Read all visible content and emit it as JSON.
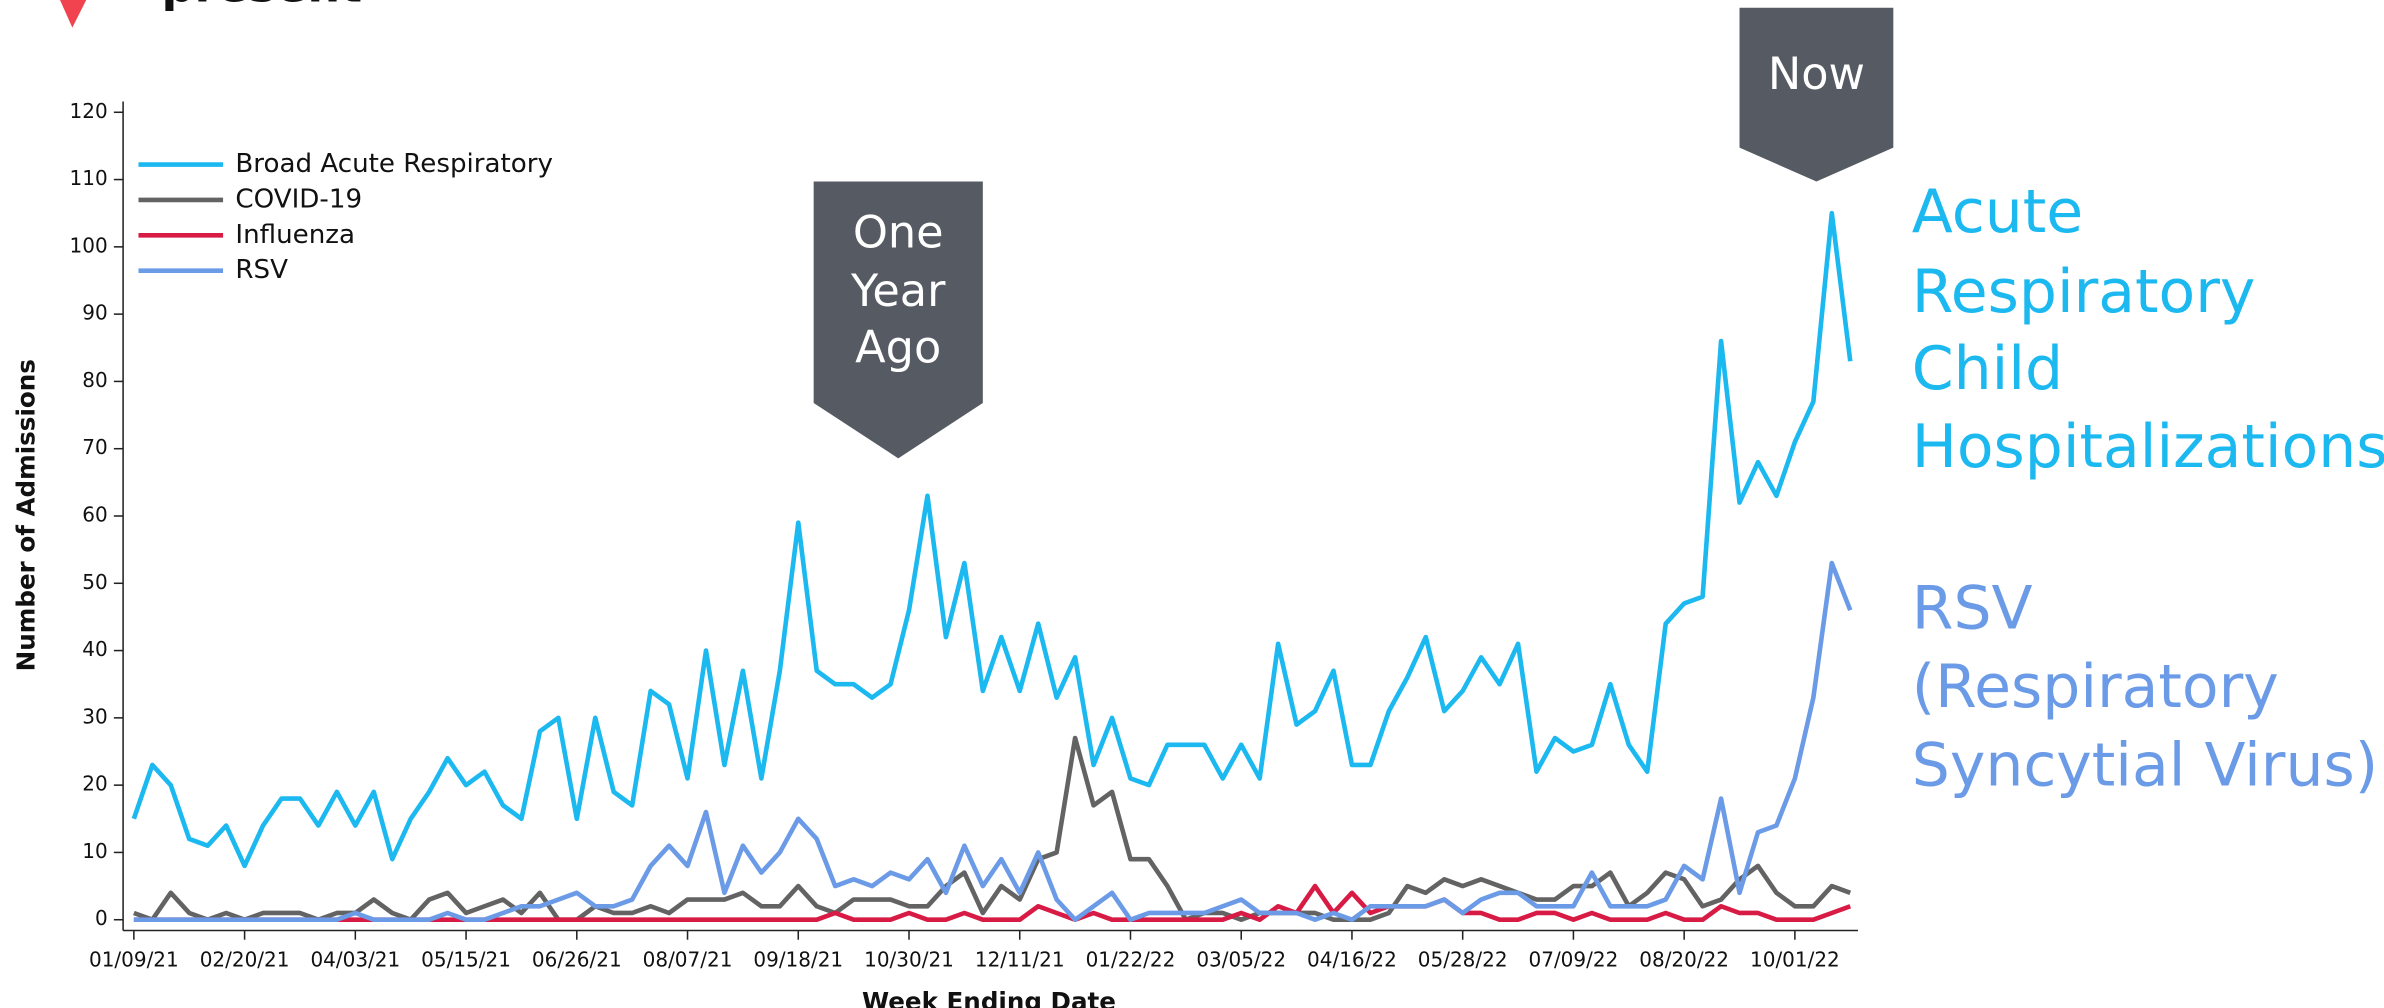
{
  "chart_data": {
    "type": "line",
    "heading_fragment": "present",
    "x_label": "Week Ending Date",
    "y_label": "Number of Admissions",
    "categories": [
      "01/09/21",
      null,
      null,
      null,
      null,
      null,
      "02/20/21",
      null,
      null,
      null,
      null,
      null,
      "04/03/21",
      null,
      null,
      null,
      null,
      null,
      "05/15/21",
      null,
      null,
      null,
      null,
      null,
      "06/26/21",
      null,
      null,
      null,
      null,
      null,
      "08/07/21",
      null,
      null,
      null,
      null,
      null,
      "09/18/21",
      null,
      null,
      null,
      null,
      null,
      "10/30/21",
      null,
      null,
      null,
      null,
      null,
      "12/11/21",
      null,
      null,
      null,
      null,
      null,
      "01/22/22",
      null,
      null,
      null,
      null,
      null,
      "03/05/22",
      null,
      null,
      null,
      null,
      null,
      "04/16/22",
      null,
      null,
      null,
      null,
      null,
      "05/28/22",
      null,
      null,
      null,
      null,
      null,
      "07/09/22",
      null,
      null,
      null,
      null,
      null,
      "08/20/22",
      null,
      null,
      null,
      null,
      null,
      "10/01/22",
      null,
      null,
      null
    ],
    "ylim": [
      0,
      120
    ],
    "yticks": [
      0,
      10,
      20,
      30,
      40,
      50,
      60,
      70,
      80,
      90,
      100,
      110,
      120
    ],
    "legend": "upper left",
    "series": [
      {
        "name": "Broad Acute Respiratory",
        "color": "#1cb8f0",
        "values": [
          15,
          23,
          20,
          12,
          11,
          14,
          8,
          14,
          18,
          18,
          14,
          19,
          14,
          19,
          9,
          15,
          19,
          24,
          20,
          22,
          17,
          15,
          28,
          30,
          15,
          30,
          19,
          17,
          34,
          32,
          21,
          40,
          23,
          37,
          21,
          37,
          59,
          37,
          35,
          35,
          33,
          35,
          46,
          63,
          42,
          53,
          34,
          42,
          34,
          44,
          33,
          39,
          23,
          30,
          21,
          20,
          26,
          26,
          26,
          21,
          26,
          21,
          41,
          29,
          31,
          37,
          23,
          23,
          31,
          36,
          42,
          31,
          34,
          39,
          35,
          41,
          22,
          27,
          25,
          26,
          35,
          26,
          22,
          44,
          47,
          48,
          86,
          62,
          68,
          63,
          71,
          77,
          105,
          83
        ]
      },
      {
        "name": "COVID-19",
        "color": "#636363",
        "values": [
          1,
          0,
          4,
          1,
          0,
          1,
          0,
          1,
          1,
          1,
          0,
          1,
          1,
          3,
          1,
          0,
          3,
          4,
          1,
          2,
          3,
          1,
          4,
          0,
          0,
          2,
          1,
          1,
          2,
          1,
          3,
          3,
          3,
          4,
          2,
          2,
          5,
          2,
          1,
          3,
          3,
          3,
          2,
          2,
          5,
          7,
          1,
          5,
          3,
          9,
          10,
          27,
          17,
          19,
          9,
          9,
          5,
          0,
          1,
          1,
          0,
          1,
          1,
          1,
          1,
          0,
          0,
          0,
          1,
          5,
          4,
          6,
          5,
          6,
          5,
          4,
          3,
          3,
          5,
          5,
          7,
          2,
          4,
          7,
          6,
          2,
          3,
          6,
          8,
          4,
          2,
          2,
          5,
          4
        ]
      },
      {
        "name": "Influenza",
        "color": "#d81b45",
        "values": [
          0,
          0,
          0,
          0,
          0,
          0,
          0,
          0,
          0,
          0,
          0,
          0,
          0,
          0,
          0,
          0,
          0,
          0,
          0,
          0,
          0,
          0,
          0,
          0,
          0,
          0,
          0,
          0,
          0,
          0,
          0,
          0,
          0,
          0,
          0,
          0,
          0,
          0,
          1,
          0,
          0,
          0,
          1,
          0,
          0,
          1,
          0,
          0,
          0,
          2,
          1,
          0,
          1,
          0,
          0,
          0,
          0,
          0,
          0,
          0,
          1,
          0,
          2,
          1,
          5,
          1,
          4,
          1,
          2,
          2,
          2,
          3,
          1,
          1,
          0,
          0,
          1,
          1,
          0,
          1,
          0,
          0,
          0,
          1,
          0,
          0,
          2,
          1,
          1,
          0,
          0,
          0,
          1,
          2
        ]
      },
      {
        "name": "RSV",
        "color": "#6b9be6",
        "values": [
          0,
          0,
          0,
          0,
          0,
          0,
          0,
          0,
          0,
          0,
          0,
          0,
          1,
          0,
          0,
          0,
          0,
          1,
          0,
          0,
          1,
          2,
          2,
          3,
          4,
          2,
          2,
          3,
          8,
          11,
          8,
          16,
          4,
          11,
          7,
          10,
          15,
          12,
          5,
          6,
          5,
          7,
          6,
          9,
          4,
          11,
          5,
          9,
          4,
          10,
          3,
          0,
          2,
          4,
          0,
          1,
          1,
          1,
          1,
          2,
          3,
          1,
          1,
          1,
          0,
          1,
          0,
          2,
          2,
          2,
          2,
          3,
          1,
          3,
          4,
          4,
          2,
          2,
          2,
          7,
          2,
          2,
          2,
          3,
          8,
          6,
          18,
          4,
          13,
          14,
          21,
          33,
          53,
          46
        ]
      }
    ],
    "callouts": [
      {
        "lines": [
          "One",
          "Year",
          "Ago"
        ]
      },
      {
        "lines": [
          "Now"
        ]
      }
    ],
    "side_labels": [
      {
        "lines": [
          "Acute",
          "Respiratory",
          "Child",
          "Hospitalizations"
        ],
        "color": "#1cb8f0"
      },
      {
        "lines": [
          "RSV",
          "(Respiratory",
          "Syncytial Virus)"
        ],
        "color": "#6b9be6"
      }
    ]
  }
}
